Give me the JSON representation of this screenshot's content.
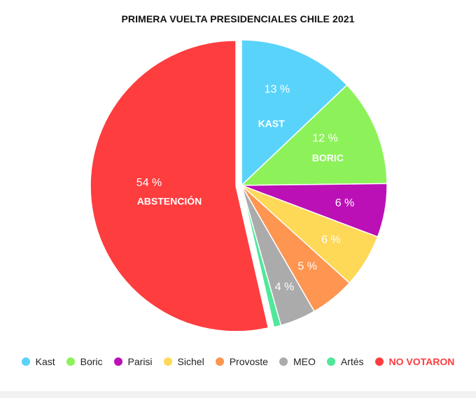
{
  "chart_data": {
    "type": "pie",
    "title": "PRIMERA VUELTA PRESIDENCIALES CHILE 2021",
    "slices": [
      {
        "name": "Kast",
        "value": 13,
        "color": "#5AD3FB",
        "percent_label": "13 %",
        "inner_label": "KAST"
      },
      {
        "name": "Boric",
        "value": 12,
        "color": "#8DF25A",
        "percent_label": "12 %",
        "inner_label": "BORIC"
      },
      {
        "name": "Parisi",
        "value": 6,
        "color": "#BB10B5",
        "percent_label": "6 %",
        "inner_label": ""
      },
      {
        "name": "Sichel",
        "value": 6,
        "color": "#FED857",
        "percent_label": "6 %",
        "inner_label": ""
      },
      {
        "name": "Provoste",
        "value": 5,
        "color": "#FE9550",
        "percent_label": "5 %",
        "inner_label": ""
      },
      {
        "name": "MEO",
        "value": 4,
        "color": "#ABABAB",
        "percent_label": "4 %",
        "inner_label": ""
      },
      {
        "name": "Artés",
        "value": 0.8,
        "color": "#4FE89A",
        "percent_label": "",
        "inner_label": ""
      },
      {
        "name": "NO VOTARON",
        "value": 54,
        "color": "#FE3D3F",
        "percent_label": "54 %",
        "inner_label": "ABSTENCIÓN",
        "exploded": true
      }
    ],
    "start_angle": "top",
    "direction": "clockwise",
    "legend_position": "bottom"
  },
  "legend": {
    "items": [
      {
        "label": "Kast",
        "color": "#5AD3FB",
        "bold": false,
        "text_color": "#222222"
      },
      {
        "label": "Boric",
        "color": "#8DF25A",
        "bold": false,
        "text_color": "#222222"
      },
      {
        "label": "Parisi",
        "color": "#BB10B5",
        "bold": false,
        "text_color": "#222222"
      },
      {
        "label": "Sichel",
        "color": "#FED857",
        "bold": false,
        "text_color": "#222222"
      },
      {
        "label": "Provoste",
        "color": "#FE9550",
        "bold": false,
        "text_color": "#222222"
      },
      {
        "label": "MEO",
        "color": "#ABABAB",
        "bold": false,
        "text_color": "#222222"
      },
      {
        "label": "Artés",
        "color": "#4FE89A",
        "bold": false,
        "text_color": "#222222"
      },
      {
        "label": "NO VOTARON",
        "color": "#FE3D3F",
        "bold": true,
        "text_color": "#FE3D3F"
      }
    ]
  }
}
